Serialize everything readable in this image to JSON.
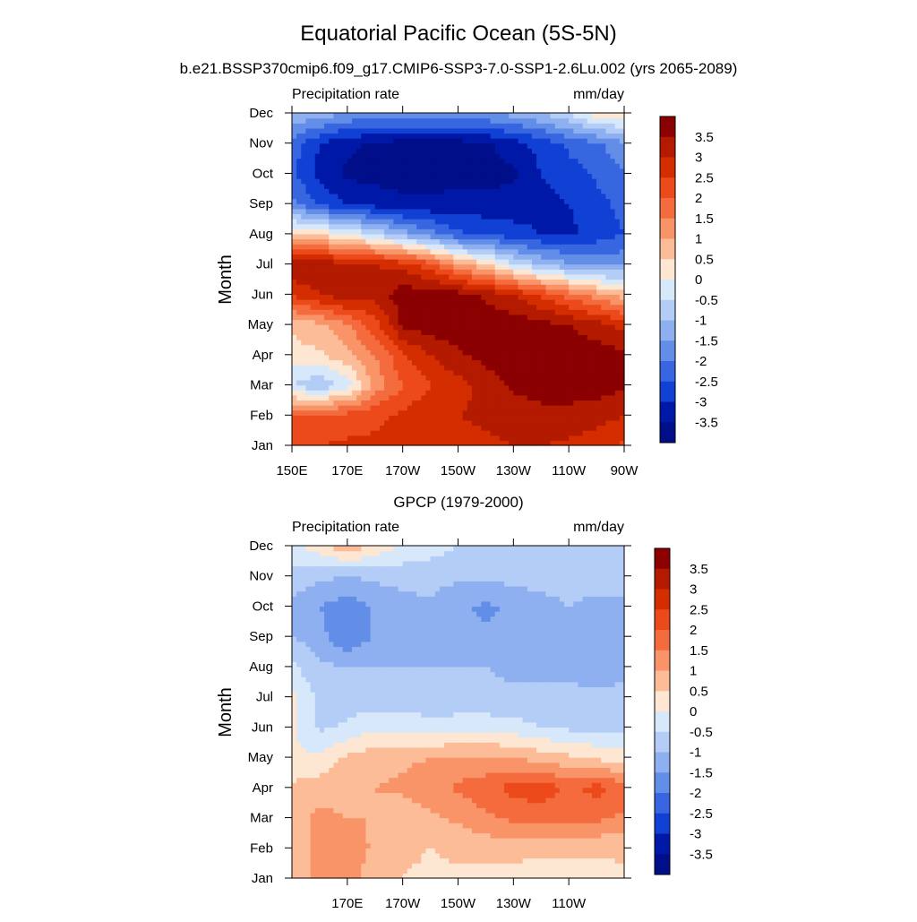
{
  "figure": {
    "title": "Equatorial Pacific Ocean (5S-5N)",
    "panel2_title": "GPCP (1979-2000)"
  },
  "colorbar": {
    "levels": [
      "3.5",
      "3",
      "2.5",
      "2",
      "1.5",
      "1",
      "0.5",
      "0",
      "-0.5",
      "-1",
      "-1.5",
      "-2",
      "-2.5",
      "-3",
      "-3.5"
    ],
    "colors": [
      "#8b0000",
      "#b31a00",
      "#d42d00",
      "#ec4a1a",
      "#f46b3e",
      "#f99469",
      "#fcbc97",
      "#fde6d2",
      "#d7e8fb",
      "#b3cdf6",
      "#8fb0f0",
      "#628ee8",
      "#3766e0",
      "#1040d4",
      "#0018a8",
      "#000e8a"
    ]
  },
  "chart_data": [
    {
      "type": "heatmap",
      "subtitle": "b.e21.BSSP370cmip6.f09_g17.CMIP6-SSP3-7.0-SSP1-2.6Lu.002 (yrs 2065-2089)",
      "left_label": "Precipitation rate",
      "right_label": "mm/day",
      "ylabel": "Month",
      "y_ticks": [
        "Jan",
        "Feb",
        "Mar",
        "Apr",
        "May",
        "Jun",
        "Jul",
        "Aug",
        "Sep",
        "Oct",
        "Nov",
        "Dec"
      ],
      "x_ticks": [
        "150E",
        "170E",
        "170W",
        "150W",
        "130W",
        "110W",
        "90W"
      ],
      "xlim": [
        150,
        270
      ],
      "ylim": [
        0,
        11
      ],
      "x_lon": [
        150,
        160,
        170,
        180,
        190,
        200,
        210,
        220,
        230,
        240,
        250,
        260,
        270
      ],
      "values": [
        [
          2.4,
          2.5,
          2.6,
          2.6,
          2.6,
          2.7,
          2.8,
          2.9,
          3.0,
          3.0,
          2.9,
          2.7,
          2.4
        ],
        [
          2.0,
          2.1,
          2.2,
          2.4,
          2.6,
          2.9,
          3.0,
          3.1,
          3.2,
          3.3,
          3.3,
          3.2,
          3.0
        ],
        [
          -0.5,
          -0.9,
          -0.3,
          1.2,
          2.0,
          2.5,
          2.8,
          3.2,
          3.6,
          3.8,
          3.8,
          3.8,
          3.6
        ],
        [
          0.3,
          0.4,
          0.9,
          1.5,
          2.4,
          3.0,
          3.4,
          3.7,
          3.8,
          3.8,
          3.8,
          3.8,
          3.6
        ],
        [
          0.6,
          0.9,
          1.4,
          2.3,
          3.6,
          3.8,
          3.8,
          3.8,
          3.8,
          3.7,
          3.5,
          3.2,
          2.8
        ],
        [
          2.6,
          3.0,
          3.4,
          3.2,
          3.8,
          3.8,
          3.7,
          3.4,
          3.0,
          2.4,
          1.8,
          1.2,
          0.8
        ],
        [
          3.5,
          3.3,
          3.2,
          3.0,
          2.8,
          2.2,
          1.2,
          0.5,
          -0.4,
          -1.0,
          -1.4,
          -1.6,
          -1.6
        ],
        [
          0.6,
          0.4,
          0.0,
          -0.6,
          -1.2,
          -1.8,
          -2.4,
          -2.6,
          -2.8,
          -3.0,
          -3.1,
          -2.8,
          -2.5
        ],
        [
          -1.8,
          -2.6,
          -3.0,
          -3.2,
          -3.4,
          -3.4,
          -3.3,
          -3.3,
          -3.3,
          -3.2,
          -3.0,
          -2.7,
          -2.3
        ],
        [
          -2.4,
          -3.2,
          -3.6,
          -3.7,
          -3.7,
          -3.7,
          -3.7,
          -3.7,
          -3.6,
          -3.0,
          -2.7,
          -2.4,
          -2.0
        ],
        [
          -2.2,
          -3.0,
          -3.4,
          -3.6,
          -3.7,
          -3.7,
          -3.7,
          -3.6,
          -3.2,
          -2.8,
          -2.4,
          -2.1,
          -1.6
        ],
        [
          -1.0,
          -1.2,
          -1.5,
          -1.6,
          -1.6,
          -1.6,
          -1.5,
          -1.5,
          -1.3,
          -1.0,
          -0.5,
          0.3,
          0.4
        ]
      ]
    },
    {
      "type": "heatmap",
      "left_label": "Precipitation rate",
      "right_label": "mm/day",
      "ylabel": "Month",
      "y_ticks": [
        "Jan",
        "Feb",
        "Mar",
        "Apr",
        "May",
        "Jun",
        "Jul",
        "Aug",
        "Sep",
        "Oct",
        "Nov",
        "Dec"
      ],
      "x_ticks": [
        "170E",
        "170W",
        "150W",
        "130W",
        "110W"
      ],
      "xlim": [
        150,
        270
      ],
      "ylim": [
        0,
        11
      ],
      "x_lon": [
        150,
        160,
        170,
        180,
        190,
        200,
        210,
        220,
        230,
        240,
        250,
        260,
        270
      ],
      "values": [
        [
          0.8,
          1.1,
          1.3,
          0.7,
          0.5,
          0.4,
          0.4,
          0.3,
          0.3,
          0.2,
          0.3,
          0.3,
          0.4
        ],
        [
          0.7,
          1.2,
          1.3,
          0.9,
          0.6,
          0.5,
          0.6,
          0.7,
          0.7,
          0.6,
          0.6,
          0.6,
          0.6
        ],
        [
          0.8,
          1.1,
          1.0,
          1.0,
          0.7,
          0.9,
          1.1,
          1.4,
          1.6,
          1.7,
          1.6,
          1.6,
          1.4
        ],
        [
          0.6,
          0.8,
          0.9,
          1.0,
          1.1,
          1.3,
          1.6,
          1.8,
          2.2,
          2.3,
          1.9,
          2.2,
          1.8
        ],
        [
          0.1,
          0.1,
          0.6,
          0.8,
          0.9,
          1.0,
          1.1,
          1.1,
          1.0,
          0.8,
          0.6,
          0.4,
          0.2
        ],
        [
          0.1,
          -0.6,
          -0.4,
          -0.1,
          -0.1,
          -0.3,
          -0.2,
          -0.2,
          -0.3,
          -0.5,
          -0.6,
          -0.6,
          -0.6
        ],
        [
          0.2,
          -0.7,
          -0.8,
          -0.8,
          -0.8,
          -0.9,
          -0.9,
          -0.9,
          -0.9,
          -0.9,
          -0.9,
          -0.9,
          -0.9
        ],
        [
          -0.4,
          -0.9,
          -1.0,
          -1.0,
          -1.0,
          -1.0,
          -1.0,
          -1.0,
          -1.1,
          -1.1,
          -1.1,
          -1.2,
          -1.1
        ],
        [
          -1.0,
          -1.3,
          -2.0,
          -1.4,
          -1.2,
          -1.1,
          -1.3,
          -1.4,
          -1.5,
          -1.4,
          -1.0,
          -1.4,
          -1.2
        ],
        [
          -1.2,
          -1.5,
          -1.8,
          -1.4,
          -1.2,
          -1.1,
          -1.4,
          -1.6,
          -1.4,
          -1.3,
          -1.0,
          -1.2,
          -1.1
        ],
        [
          -0.6,
          -0.9,
          -1.0,
          -0.9,
          -0.8,
          -0.8,
          -0.9,
          -0.9,
          -0.8,
          -0.7,
          -0.6,
          -0.7,
          -0.7
        ],
        [
          -0.2,
          0.3,
          0.9,
          0.4,
          -0.1,
          -0.3,
          -0.5,
          -0.5,
          -0.5,
          -0.5,
          -0.5,
          -0.5,
          -0.5
        ]
      ]
    }
  ]
}
